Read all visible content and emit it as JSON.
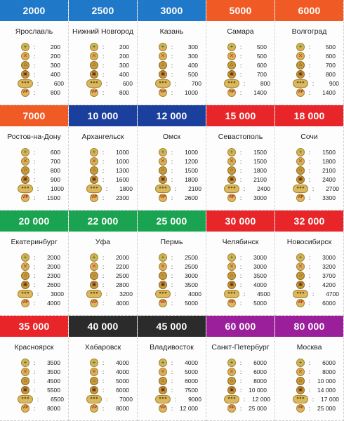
{
  "cards": [
    {
      "price": "2000",
      "color": "#1f78c8",
      "city": "Ярославль",
      "rents": [
        "200",
        "200",
        "300",
        "400",
        "600",
        "800"
      ]
    },
    {
      "price": "2500",
      "color": "#1f78c8",
      "city": "Нижний Новгород",
      "rents": [
        "200",
        "200",
        "300",
        "400",
        "600",
        "800"
      ]
    },
    {
      "price": "3000",
      "color": "#1f78c8",
      "city": "Казань",
      "rents": [
        "300",
        "300",
        "400",
        "500",
        "700",
        "1000"
      ]
    },
    {
      "price": "5000",
      "color": "#f05a24",
      "city": "Самара",
      "rents": [
        "500",
        "500",
        "600",
        "700",
        "800",
        "1400"
      ]
    },
    {
      "price": "6000",
      "color": "#f05a24",
      "city": "Волгоград",
      "rents": [
        "500",
        "600",
        "700",
        "800",
        "900",
        "1400"
      ]
    },
    {
      "price": "7000",
      "color": "#f05a24",
      "city": "Ростов-на-Дону",
      "rents": [
        "600",
        "700",
        "800",
        "900",
        "1000",
        "1500"
      ]
    },
    {
      "price": "10 000",
      "color": "#1a3f9c",
      "city": "Архангельск",
      "rents": [
        "1000",
        "1000",
        "1300",
        "1600",
        "1800",
        "2300"
      ]
    },
    {
      "price": "12 000",
      "color": "#1a3f9c",
      "city": "Омск",
      "rents": [
        "1000",
        "1200",
        "1500",
        "1800",
        "2100",
        "2600"
      ]
    },
    {
      "price": "15 000",
      "color": "#e8262a",
      "city": "Севастополь",
      "rents": [
        "1500",
        "1500",
        "1800",
        "2100",
        "2400",
        "3000"
      ]
    },
    {
      "price": "18 000",
      "color": "#e8262a",
      "city": "Сочи",
      "rents": [
        "1500",
        "1800",
        "2100",
        "2400",
        "2700",
        "3300"
      ]
    },
    {
      "price": "20 000",
      "color": "#1aa350",
      "city": "Екатеринбург",
      "rents": [
        "2000",
        "2000",
        "2300",
        "2600",
        "3000",
        "4000"
      ]
    },
    {
      "price": "22 000",
      "color": "#1aa350",
      "city": "Уфа",
      "rents": [
        "2000",
        "2200",
        "2500",
        "2800",
        "3200",
        "4000"
      ]
    },
    {
      "price": "25 000",
      "color": "#1aa350",
      "city": "Пермь",
      "rents": [
        "2500",
        "2500",
        "3000",
        "3500",
        "4000",
        "5000"
      ]
    },
    {
      "price": "30 000",
      "color": "#e8262a",
      "city": "Челябинск",
      "rents": [
        "3000",
        "3000",
        "3500",
        "4000",
        "4500",
        "5000"
      ]
    },
    {
      "price": "32 000",
      "color": "#e8262a",
      "city": "Новосибирск",
      "rents": [
        "3000",
        "3200",
        "3700",
        "4200",
        "4700",
        "6000"
      ]
    },
    {
      "price": "35 000",
      "color": "#e8262a",
      "city": "Красноярск",
      "rents": [
        "3500",
        "3500",
        "4500",
        "5500",
        "6500",
        "8000"
      ]
    },
    {
      "price": "40 000",
      "color": "#2b2b2b",
      "city": "Хабаровск",
      "rents": [
        "4000",
        "4000",
        "5000",
        "6000",
        "7000",
        "8000"
      ]
    },
    {
      "price": "45 000",
      "color": "#2b2b2b",
      "city": "Владивосток",
      "rents": [
        "4000",
        "5000",
        "6000",
        "7500",
        "9000",
        "12 000"
      ]
    },
    {
      "price": "60 000",
      "color": "#9b1f9b",
      "city": "Санкт-Петербург",
      "rents": [
        "6000",
        "6000",
        "8000",
        "10 000",
        "12 000",
        "25 000"
      ]
    },
    {
      "price": "80 000",
      "color": "#9b1f9b",
      "city": "Москва",
      "rents": [
        "6000",
        "8000",
        "10 000",
        "14 000",
        "17 000",
        "25 000"
      ]
    }
  ],
  "icons": [
    {
      "name": "plus-icon",
      "glyph": "+",
      "cls": "plus"
    },
    {
      "name": "cross-icon",
      "glyph": "✕",
      "cls": "cross"
    },
    {
      "name": "house-icon",
      "glyph": "⌂",
      "cls": "house"
    },
    {
      "name": "hotel-icon",
      "glyph": "▣",
      "cls": "hotel"
    },
    {
      "name": "coins-icon",
      "glyph": "●●●",
      "cls": "coins"
    },
    {
      "name": "vip-icon",
      "glyph": "VIP",
      "cls": "vip"
    }
  ],
  "colon": ":"
}
